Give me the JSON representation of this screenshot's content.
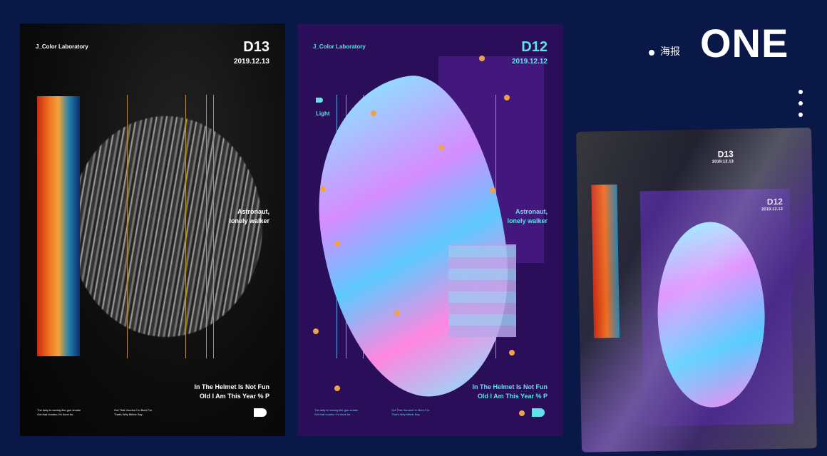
{
  "header": {
    "title": "ONE",
    "subtitle": "海报"
  },
  "colors": {
    "background": "#0a1848",
    "accent_cyan": "#5fe3e6",
    "accent_orange": "#f0a24a",
    "purple": "#2a0e5a"
  },
  "posters": [
    {
      "brand": "J_Color Laboratory",
      "day": "D13",
      "date": "2019.12.13",
      "side": [
        "Astronaut,",
        "lonely walker"
      ],
      "sub": [
        "In The Helmet Is Not Fun",
        "Old I Am This Year % P"
      ],
      "bullets_left": [
        "The lady is moving like gun smoke",
        "Got that voodoo I'm done for"
      ],
      "bullets_right": [
        "Got That Voodoo I'm Born For",
        "That's Why Milme Say"
      ]
    },
    {
      "brand": "J_Color Laboratory",
      "day": "D12",
      "date": "2019.12.12",
      "tag": "Light",
      "side": [
        "Astronaut,",
        "lonely walker"
      ],
      "sub": [
        "In The Helmet Is Not Fun",
        "Old I Am This Year % P"
      ],
      "bullets_left": [
        "The lady is moving like gun smoke",
        "Got that voodoo I'm done for"
      ],
      "bullets_right": [
        "Got That Voodoo I'm Born For",
        "That's Why Milme Say"
      ]
    },
    {
      "day_a": "D13",
      "date_a": "2019.12.13",
      "day_b": "D12",
      "date_b": "2019.12.12"
    }
  ]
}
